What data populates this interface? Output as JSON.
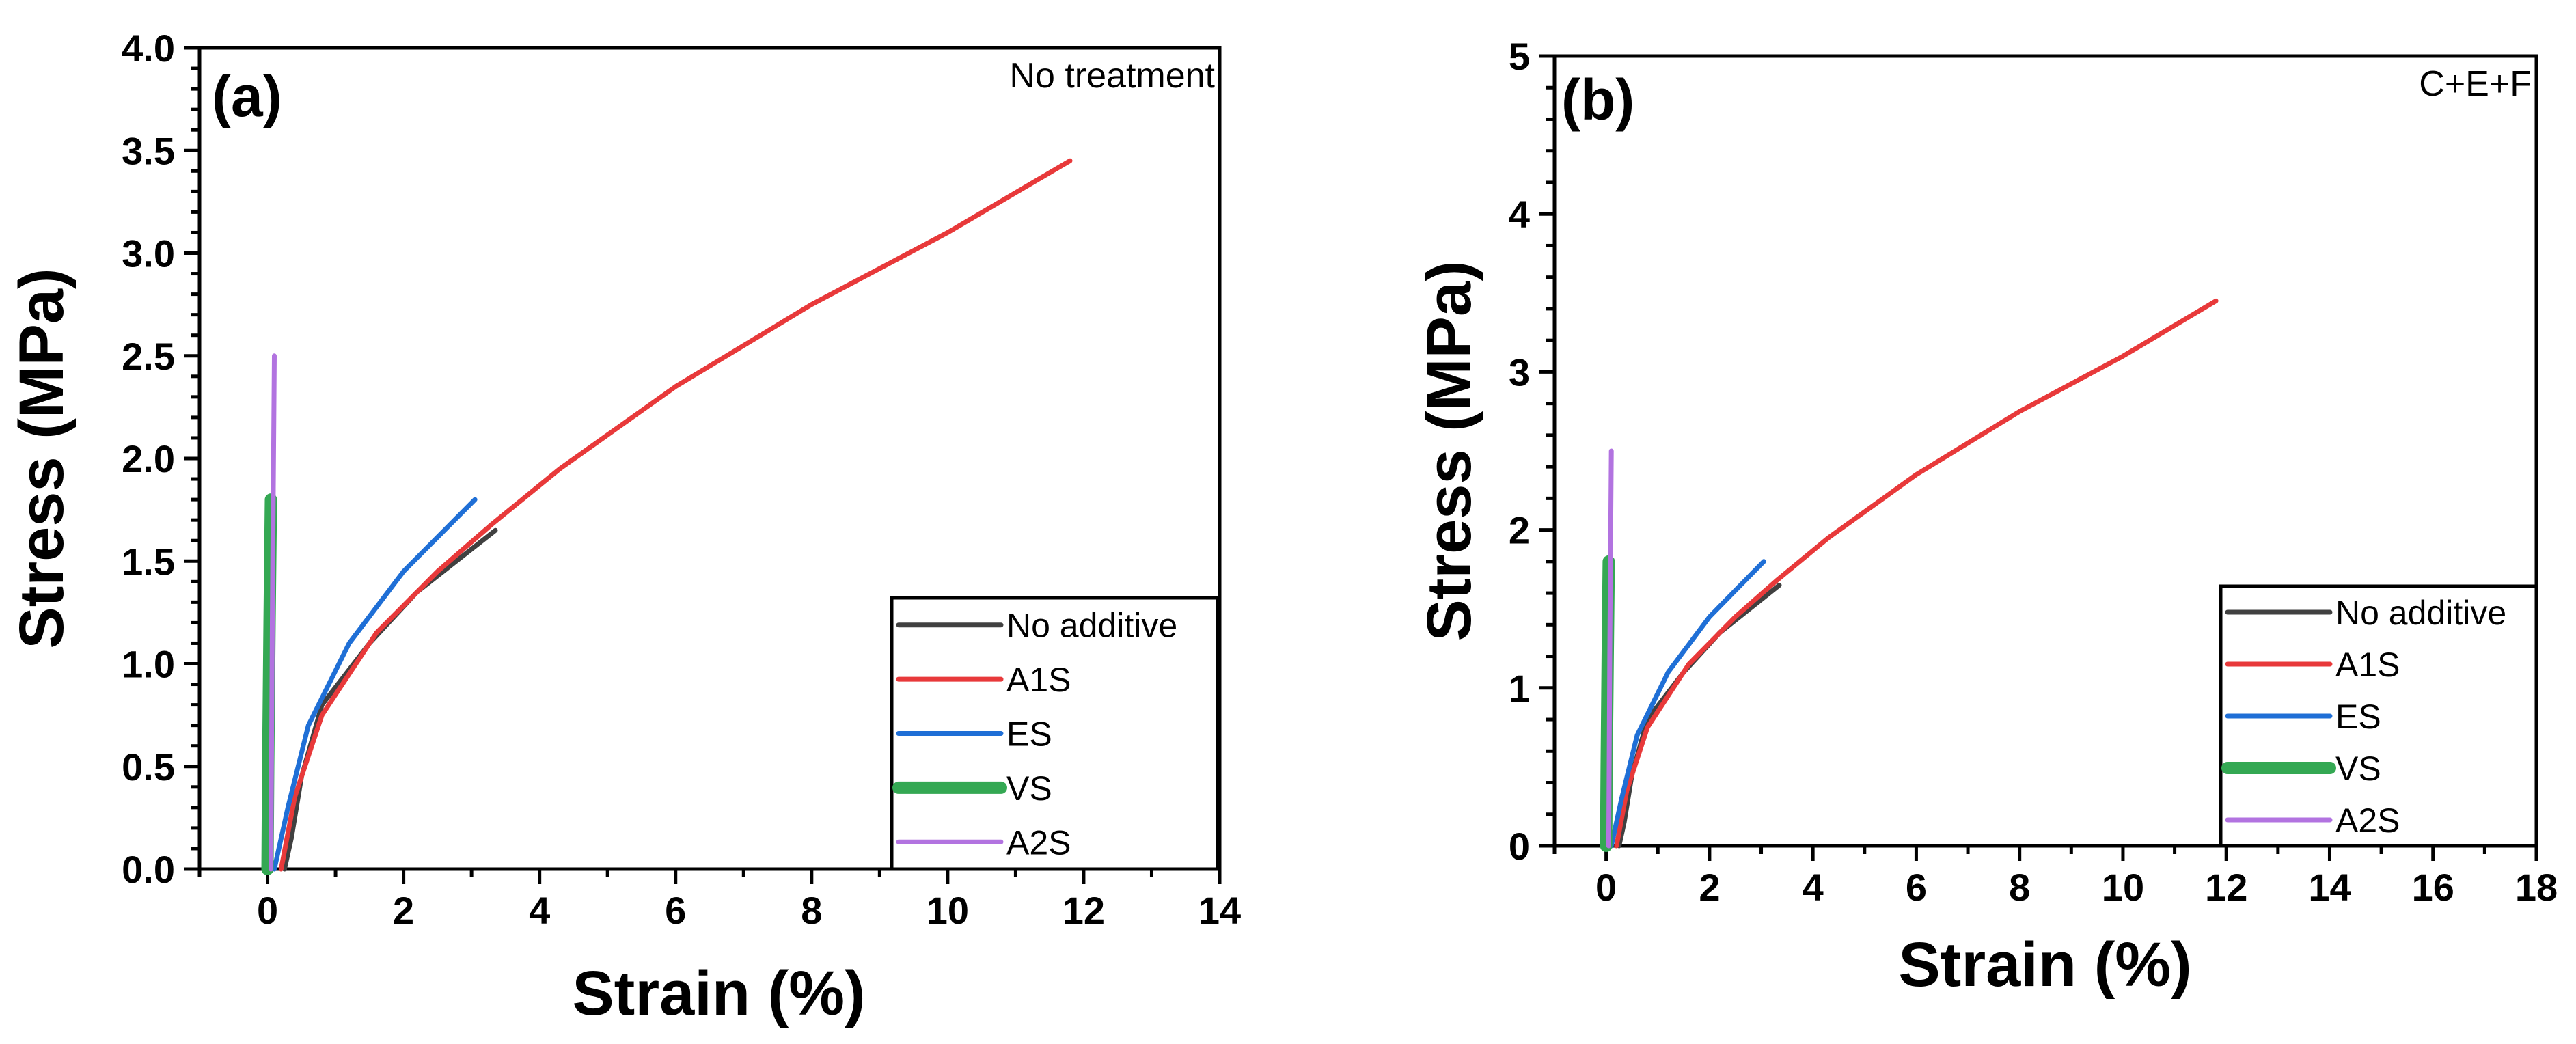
{
  "chart_data": [
    {
      "type": "line",
      "panel_label": "(a)",
      "condition": "No treatment",
      "xlabel": "Strain (%)",
      "ylabel": "Stress (MPa)",
      "xlim": [
        -1,
        14
      ],
      "ylim": [
        0,
        4
      ],
      "xticks": [
        0,
        2,
        4,
        6,
        8,
        10,
        12,
        14
      ],
      "yticks": [
        0.0,
        0.5,
        1.0,
        1.5,
        2.0,
        2.5,
        3.0,
        3.5,
        4.0
      ],
      "ytick_labels": [
        "0.0",
        "0.5",
        "1.0",
        "1.5",
        "2.0",
        "2.5",
        "3.0",
        "3.5",
        "4.0"
      ],
      "grid": false,
      "legend_position": "bottom-right",
      "series": [
        {
          "name": "No additive",
          "color": "#404040",
          "width": "thin",
          "points": [
            [
              0.25,
              0
            ],
            [
              0.35,
              0.15
            ],
            [
              0.5,
              0.45
            ],
            [
              0.8,
              0.8
            ],
            [
              1.5,
              1.1
            ],
            [
              2.2,
              1.35
            ],
            [
              3.35,
              1.65
            ]
          ]
        },
        {
          "name": "A1S",
          "color": "#e8393a",
          "width": "thin",
          "points": [
            [
              0.2,
              0
            ],
            [
              0.4,
              0.35
            ],
            [
              0.8,
              0.75
            ],
            [
              1.6,
              1.15
            ],
            [
              2.5,
              1.45
            ],
            [
              3.3,
              1.68
            ],
            [
              4.3,
              1.95
            ],
            [
              6.0,
              2.35
            ],
            [
              8.0,
              2.75
            ],
            [
              10.0,
              3.1
            ],
            [
              11.8,
              3.45
            ]
          ]
        },
        {
          "name": "ES",
          "color": "#1f6fd6",
          "width": "thin",
          "points": [
            [
              0.1,
              0
            ],
            [
              0.3,
              0.3
            ],
            [
              0.6,
              0.7
            ],
            [
              1.2,
              1.1
            ],
            [
              2.0,
              1.45
            ],
            [
              3.05,
              1.8
            ]
          ]
        },
        {
          "name": "VS",
          "color": "#34a853",
          "width": "thick",
          "points": [
            [
              0.0,
              0
            ],
            [
              0.01,
              0.5
            ],
            [
              0.03,
              1.2
            ],
            [
              0.05,
              1.8
            ]
          ]
        },
        {
          "name": "A2S",
          "color": "#b273e0",
          "width": "thin",
          "points": [
            [
              0.05,
              0
            ],
            [
              0.07,
              1.2
            ],
            [
              0.1,
              2.5
            ]
          ]
        }
      ]
    },
    {
      "type": "line",
      "panel_label": "(b)",
      "condition": "C+E+F",
      "xlabel": "Strain (%)",
      "ylabel": "Stress (MPa)",
      "xlim": [
        -1,
        18
      ],
      "ylim": [
        0,
        5
      ],
      "xticks": [
        0,
        2,
        4,
        6,
        8,
        10,
        12,
        14,
        16,
        18
      ],
      "yticks": [
        0,
        1,
        2,
        3,
        4,
        5
      ],
      "ytick_labels": [
        "0",
        "1",
        "2",
        "3",
        "4",
        "5"
      ],
      "grid": false,
      "legend_position": "bottom-right",
      "series": [
        {
          "name": "No additive",
          "color": "#404040",
          "width": "thin",
          "points": [
            [
              0.25,
              0
            ],
            [
              0.35,
              0.15
            ],
            [
              0.5,
              0.45
            ],
            [
              0.8,
              0.8
            ],
            [
              1.5,
              1.1
            ],
            [
              2.2,
              1.35
            ],
            [
              3.35,
              1.65
            ]
          ]
        },
        {
          "name": "A1S",
          "color": "#e8393a",
          "width": "thin",
          "points": [
            [
              0.2,
              0
            ],
            [
              0.4,
              0.35
            ],
            [
              0.8,
              0.75
            ],
            [
              1.6,
              1.15
            ],
            [
              2.5,
              1.45
            ],
            [
              3.3,
              1.68
            ],
            [
              4.3,
              1.95
            ],
            [
              6.0,
              2.35
            ],
            [
              8.0,
              2.75
            ],
            [
              10.0,
              3.1
            ],
            [
              11.8,
              3.45
            ]
          ]
        },
        {
          "name": "ES",
          "color": "#1f6fd6",
          "width": "thin",
          "points": [
            [
              0.1,
              0
            ],
            [
              0.3,
              0.3
            ],
            [
              0.6,
              0.7
            ],
            [
              1.2,
              1.1
            ],
            [
              2.0,
              1.45
            ],
            [
              3.05,
              1.8
            ]
          ]
        },
        {
          "name": "VS",
          "color": "#34a853",
          "width": "thick",
          "points": [
            [
              0.0,
              0
            ],
            [
              0.01,
              0.5
            ],
            [
              0.03,
              1.2
            ],
            [
              0.05,
              1.8
            ]
          ]
        },
        {
          "name": "A2S",
          "color": "#b273e0",
          "width": "thin",
          "points": [
            [
              0.05,
              0
            ],
            [
              0.07,
              1.2
            ],
            [
              0.1,
              2.5
            ]
          ]
        }
      ]
    }
  ]
}
